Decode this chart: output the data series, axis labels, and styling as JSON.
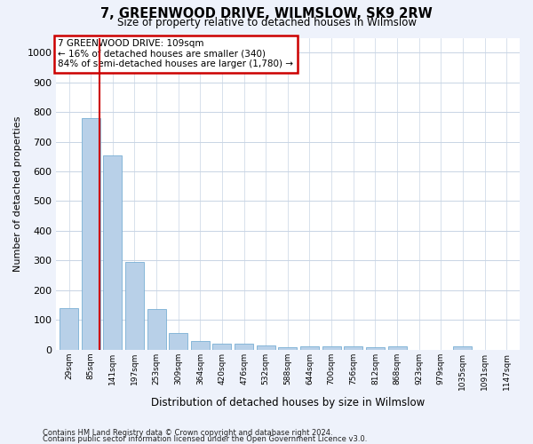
{
  "title": "7, GREENWOOD DRIVE, WILMSLOW, SK9 2RW",
  "subtitle": "Size of property relative to detached houses in Wilmslow",
  "xlabel": "Distribution of detached houses by size in Wilmslow",
  "ylabel": "Number of detached properties",
  "bar_color": "#b8d0e8",
  "bar_edge_color": "#7aafd4",
  "grid_color": "#c8d4e4",
  "annotation_box_color": "#cc0000",
  "annotation_text": "7 GREENWOOD DRIVE: 109sqm\n← 16% of detached houses are smaller (340)\n84% of semi-detached houses are larger (1,780) →",
  "vline_color": "#cc0000",
  "vline_x": 1.42,
  "categories": [
    "29sqm",
    "85sqm",
    "141sqm",
    "197sqm",
    "253sqm",
    "309sqm",
    "364sqm",
    "420sqm",
    "476sqm",
    "532sqm",
    "588sqm",
    "644sqm",
    "700sqm",
    "756sqm",
    "812sqm",
    "868sqm",
    "923sqm",
    "979sqm",
    "1035sqm",
    "1091sqm",
    "1147sqm"
  ],
  "values": [
    140,
    780,
    655,
    295,
    138,
    55,
    30,
    20,
    20,
    14,
    8,
    10,
    10,
    10,
    8,
    10,
    0,
    0,
    12,
    0,
    0
  ],
  "ylim": [
    0,
    1050
  ],
  "yticks": [
    0,
    100,
    200,
    300,
    400,
    500,
    600,
    700,
    800,
    900,
    1000
  ],
  "footer1": "Contains HM Land Registry data © Crown copyright and database right 2024.",
  "footer2": "Contains public sector information licensed under the Open Government Licence v3.0.",
  "bg_color": "#eef2fb",
  "plot_bg_color": "#ffffff"
}
